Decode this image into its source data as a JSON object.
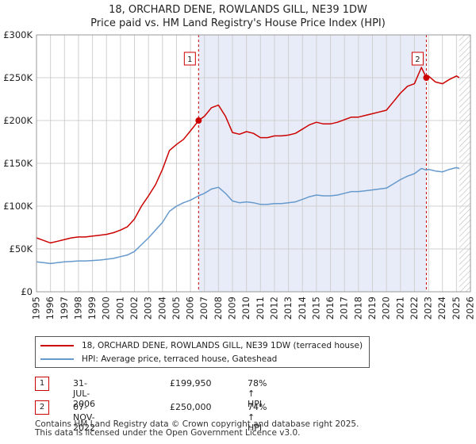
{
  "title_line1": "18, ORCHARD DENE, ROWLANDS GILL, NE39 1DW",
  "title_line2": "Price paid vs. HM Land Registry's House Price Index (HPI)",
  "chart_data": {
    "type": "line",
    "xlim": [
      1995,
      2026
    ],
    "ylim": [
      0,
      300000
    ],
    "y_ticks": [
      0,
      50000,
      100000,
      150000,
      200000,
      250000,
      300000
    ],
    "y_tick_labels": [
      "£0",
      "£50K",
      "£100K",
      "£150K",
      "£200K",
      "£250K",
      "£300K"
    ],
    "x_ticks": [
      1995,
      1996,
      1997,
      1998,
      1999,
      2000,
      2001,
      2002,
      2003,
      2004,
      2005,
      2006,
      2007,
      2008,
      2009,
      2010,
      2011,
      2012,
      2013,
      2014,
      2015,
      2016,
      2017,
      2018,
      2019,
      2020,
      2021,
      2022,
      2023,
      2024,
      2025,
      2026
    ],
    "x_tick_labels": [
      "1995",
      "1996",
      "1997",
      "1998",
      "1999",
      "2000",
      "2001",
      "2002",
      "2003",
      "2004",
      "2005",
      "2006",
      "2007",
      "2008",
      "2009",
      "2010",
      "2011",
      "2012",
      "2013",
      "2014",
      "2015",
      "2016",
      "2017",
      "2018",
      "2019",
      "2020",
      "2021",
      "2022",
      "2023",
      "2024",
      "2025",
      "2026"
    ],
    "grid": true,
    "shaded_period": [
      2006.58,
      2022.85
    ],
    "future_hatch_from": 2025.2,
    "series": [
      {
        "name": "18, ORCHARD DENE, ROWLANDS GILL, NE39 1DW (terraced house)",
        "color": "#cc0000",
        "x": [
          1995.0,
          1995.5,
          1996.0,
          1996.5,
          1997.0,
          1997.5,
          1998.0,
          1998.5,
          1999.0,
          1999.5,
          2000.0,
          2000.5,
          2001.0,
          2001.5,
          2002.0,
          2002.5,
          2003.0,
          2003.5,
          2004.0,
          2004.5,
          2005.0,
          2005.5,
          2006.0,
          2006.58,
          2007.0,
          2007.5,
          2008.0,
          2008.5,
          2009.0,
          2009.5,
          2010.0,
          2010.5,
          2011.0,
          2011.5,
          2012.0,
          2012.5,
          2013.0,
          2013.5,
          2014.0,
          2014.5,
          2015.0,
          2015.5,
          2016.0,
          2016.5,
          2017.0,
          2017.5,
          2018.0,
          2018.5,
          2019.0,
          2019.5,
          2020.0,
          2020.5,
          2021.0,
          2021.5,
          2022.0,
          2022.5,
          2022.85,
          2023.0,
          2023.5,
          2024.0,
          2024.5,
          2025.0,
          2025.2
        ],
        "values": [
          63000,
          60000,
          57000,
          59000,
          61000,
          63000,
          64000,
          64000,
          65000,
          66000,
          67000,
          69000,
          72000,
          76000,
          85000,
          100000,
          112000,
          125000,
          143000,
          165000,
          172000,
          178000,
          188000,
          199950,
          205000,
          215000,
          218000,
          205000,
          186000,
          184000,
          187000,
          185000,
          180000,
          180000,
          182000,
          182000,
          183000,
          185000,
          190000,
          195000,
          198000,
          196000,
          196000,
          198000,
          201000,
          204000,
          204000,
          206000,
          208000,
          210000,
          212000,
          222000,
          232000,
          240000,
          243000,
          262000,
          250000,
          252000,
          245000,
          243000,
          248000,
          252000,
          250000
        ]
      },
      {
        "name": "HPI: Average price, terraced house, Gateshead",
        "color": "#6699cc",
        "x": [
          1995.0,
          1995.5,
          1996.0,
          1996.5,
          1997.0,
          1997.5,
          1998.0,
          1998.5,
          1999.0,
          1999.5,
          2000.0,
          2000.5,
          2001.0,
          2001.5,
          2002.0,
          2002.5,
          2003.0,
          2003.5,
          2004.0,
          2004.5,
          2005.0,
          2005.5,
          2006.0,
          2006.58,
          2007.0,
          2007.5,
          2008.0,
          2008.5,
          2009.0,
          2009.5,
          2010.0,
          2010.5,
          2011.0,
          2011.5,
          2012.0,
          2012.5,
          2013.0,
          2013.5,
          2014.0,
          2014.5,
          2015.0,
          2015.5,
          2016.0,
          2016.5,
          2017.0,
          2017.5,
          2018.0,
          2018.5,
          2019.0,
          2019.5,
          2020.0,
          2020.5,
          2021.0,
          2021.5,
          2022.0,
          2022.5,
          2022.85,
          2023.0,
          2023.5,
          2024.0,
          2024.5,
          2025.0,
          2025.2
        ],
        "values": [
          35000,
          34000,
          33000,
          34000,
          35000,
          35500,
          36000,
          36000,
          36500,
          37000,
          38000,
          39000,
          41000,
          43000,
          47000,
          55000,
          63000,
          72000,
          81000,
          94000,
          100000,
          104000,
          107000,
          112000,
          115000,
          120000,
          122000,
          115000,
          106000,
          104000,
          105000,
          104000,
          102000,
          102000,
          103000,
          103000,
          104000,
          105000,
          108000,
          111000,
          113000,
          112000,
          112000,
          113000,
          115000,
          117000,
          117000,
          118000,
          119000,
          120000,
          121000,
          126000,
          131000,
          135000,
          138000,
          144000,
          142000,
          143000,
          141000,
          140000,
          143000,
          145000,
          144000
        ]
      }
    ],
    "annotations": [
      {
        "label": "1",
        "x": 2006.58,
        "y": 199950
      },
      {
        "label": "2",
        "x": 2022.85,
        "y": 250000
      }
    ]
  },
  "legend": {
    "red_label": "18, ORCHARD DENE, ROWLANDS GILL, NE39 1DW (terraced house)",
    "blue_label": "HPI: Average price, terraced house, Gateshead"
  },
  "sales": [
    {
      "num": "1",
      "date": "31-JUL-2006",
      "price": "£199,950",
      "hpi": "78% ↑ HPI"
    },
    {
      "num": "2",
      "date": "07-NOV-2022",
      "price": "£250,000",
      "hpi": "74% ↑ HPI"
    }
  ],
  "footer_line1": "Contains HM Land Registry data © Crown copyright and database right 2025.",
  "footer_line2": "This data is licensed under the Open Government Licence v3.0."
}
